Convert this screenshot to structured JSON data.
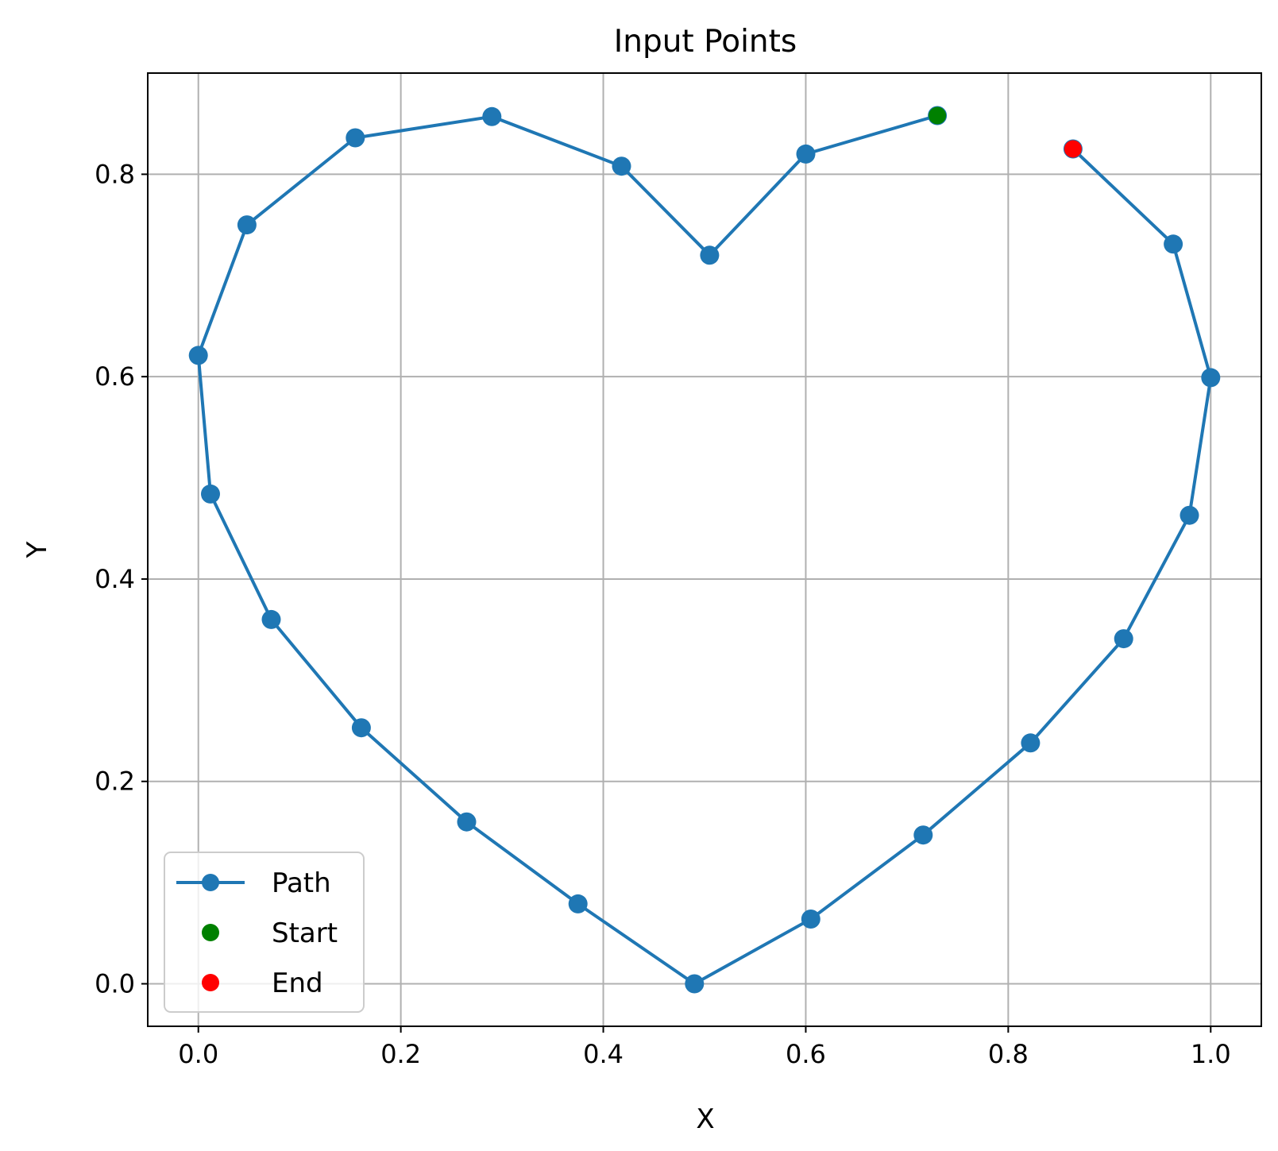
{
  "chart_data": {
    "type": "line",
    "title": "Input Points",
    "xlabel": "X",
    "ylabel": "Y",
    "xlim": [
      -0.05,
      1.05
    ],
    "ylim": [
      -0.042,
      0.9
    ],
    "xticks": [
      "0.0",
      "0.2",
      "0.4",
      "0.6",
      "0.8",
      "1.0"
    ],
    "yticks": [
      "0.0",
      "0.2",
      "0.4",
      "0.6",
      "0.8"
    ],
    "grid": true,
    "legend_position": "lower left",
    "series": [
      {
        "name": "Path",
        "color": "#1f77b4",
        "marker": "circle",
        "points": [
          [
            0.73,
            0.858
          ],
          [
            0.6,
            0.82
          ],
          [
            0.505,
            0.72
          ],
          [
            0.418,
            0.808
          ],
          [
            0.29,
            0.857
          ],
          [
            0.155,
            0.836
          ],
          [
            0.048,
            0.75
          ],
          [
            0.0,
            0.621
          ],
          [
            0.012,
            0.484
          ],
          [
            0.072,
            0.36
          ],
          [
            0.161,
            0.253
          ],
          [
            0.265,
            0.16
          ],
          [
            0.375,
            0.079
          ],
          [
            0.49,
            0.0
          ],
          [
            0.605,
            0.064
          ],
          [
            0.716,
            0.147
          ],
          [
            0.822,
            0.238
          ],
          [
            0.914,
            0.341
          ],
          [
            0.979,
            0.463
          ],
          [
            1.0,
            0.599
          ],
          [
            0.963,
            0.731
          ],
          [
            0.864,
            0.825
          ]
        ]
      },
      {
        "name": "Start",
        "color": "#008000",
        "marker": "circle",
        "points": [
          [
            0.73,
            0.858
          ]
        ]
      },
      {
        "name": "End",
        "color": "#ff0000",
        "marker": "circle",
        "points": [
          [
            0.864,
            0.825
          ]
        ]
      }
    ]
  },
  "colors": {
    "path": "#1f77b4",
    "start": "#008000",
    "end": "#ff0000",
    "grid": "#b0b0b0"
  }
}
